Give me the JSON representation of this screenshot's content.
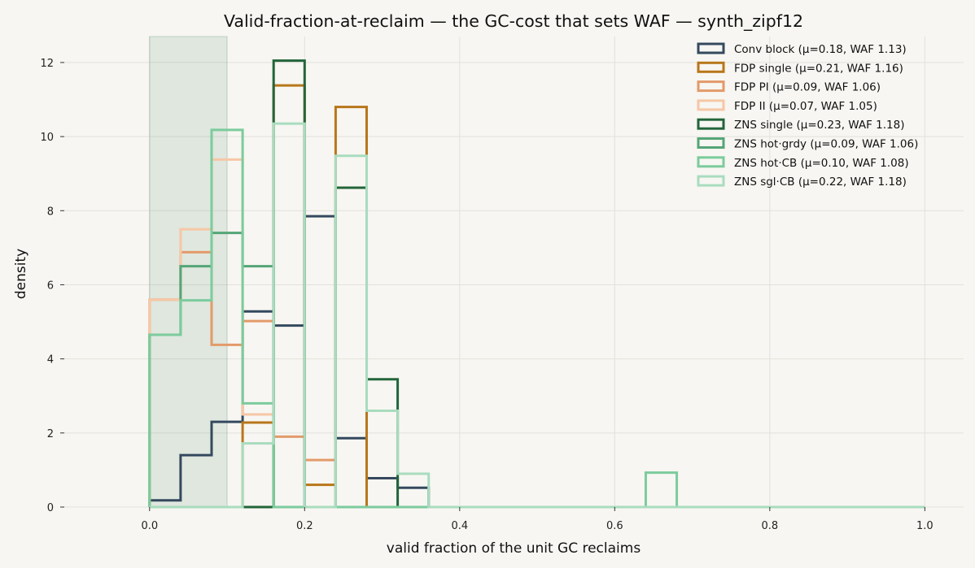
{
  "chart_data": {
    "type": "histogram",
    "title": "Valid-fraction-at-reclaim — the GC-cost that sets WAF — synth_zipf12",
    "xlabel": "valid fraction of the unit GC reclaims",
    "ylabel": "density",
    "xlim": [
      -0.11,
      1.05
    ],
    "ylim": [
      0,
      12.7
    ],
    "xticks": [
      "0.0",
      "0.2",
      "0.4",
      "0.6",
      "0.8",
      "1.0"
    ],
    "yticks": [
      "0",
      "2",
      "4",
      "6",
      "8",
      "10",
      "12"
    ],
    "grid": true,
    "legend_position": "upper right",
    "shaded_region": {
      "x": [
        0.0,
        0.1
      ],
      "color": "#2e7d4f",
      "opacity": 0.12
    },
    "bin_edges": [
      0.0,
      0.04,
      0.08,
      0.12,
      0.16,
      0.2,
      0.24,
      0.28,
      0.32,
      0.36,
      0.4,
      0.44,
      0.48,
      0.52,
      0.56,
      0.6,
      0.64,
      0.68,
      0.72,
      0.76,
      0.8,
      0.84,
      0.88,
      0.92,
      0.96,
      1.0
    ],
    "series": [
      {
        "name": "Conv block  (μ=0.18, WAF 1.13)",
        "color": "#34495e",
        "values": [
          0.18,
          1.4,
          2.3,
          5.28,
          4.9,
          7.85,
          1.86,
          0.78,
          0.52,
          0,
          0,
          0,
          0,
          0,
          0,
          0,
          0,
          0,
          0,
          0,
          0,
          0,
          0,
          0,
          0
        ]
      },
      {
        "name": "FDP single  (μ=0.21, WAF 1.16)",
        "color": "#b8761a",
        "values": [
          0,
          0,
          0,
          2.28,
          11.38,
          0.6,
          10.8,
          0,
          0,
          0,
          0,
          0,
          0,
          0,
          0,
          0,
          0,
          0,
          0,
          0,
          0,
          0,
          0,
          0,
          0
        ]
      },
      {
        "name": "FDP PI  (μ=0.09, WAF 1.06)",
        "color": "#e39a6a",
        "values": [
          5.6,
          6.88,
          4.38,
          5.02,
          1.9,
          1.27,
          0,
          0,
          0,
          0,
          0,
          0,
          0,
          0,
          0,
          0,
          0,
          0,
          0,
          0,
          0,
          0,
          0,
          0,
          0
        ]
      },
      {
        "name": "FDP II  (μ=0.07, WAF 1.05)",
        "color": "#f6c7a6",
        "values": [
          5.6,
          7.5,
          9.38,
          2.5,
          0,
          0,
          0,
          0,
          0,
          0,
          0,
          0,
          0,
          0,
          0,
          0,
          0,
          0,
          0,
          0,
          0,
          0,
          0,
          0,
          0
        ]
      },
      {
        "name": "ZNS single  (μ=0.23, WAF 1.18)",
        "color": "#23653a",
        "values": [
          0,
          0,
          0,
          0,
          12.05,
          0,
          8.62,
          3.45,
          0,
          0,
          0,
          0,
          0,
          0,
          0,
          0,
          0,
          0,
          0,
          0,
          0,
          0,
          0,
          0,
          0
        ]
      },
      {
        "name": "ZNS hot·grdy  (μ=0.09, WAF 1.06)",
        "color": "#55a577",
        "values": [
          4.65,
          6.5,
          7.4,
          6.5,
          0,
          0,
          0,
          0,
          0,
          0,
          0,
          0,
          0,
          0,
          0,
          0,
          0,
          0,
          0,
          0,
          0,
          0,
          0,
          0,
          0
        ]
      },
      {
        "name": "ZNS hot·CB  (μ=0.10, WAF 1.08)",
        "color": "#7ccb9c",
        "values": [
          4.65,
          5.58,
          10.18,
          2.8,
          0,
          0,
          0,
          0,
          0,
          0,
          0,
          0,
          0,
          0,
          0,
          0,
          0.93,
          0,
          0,
          0,
          0,
          0,
          0,
          0,
          0
        ]
      },
      {
        "name": "ZNS sgl·CB  (μ=0.22, WAF 1.18)",
        "color": "#a9dcbf",
        "values": [
          0,
          0,
          0,
          1.72,
          10.35,
          0,
          9.48,
          2.6,
          0.9,
          0,
          0,
          0,
          0,
          0,
          0,
          0,
          0,
          0,
          0,
          0,
          0,
          0,
          0,
          0,
          0
        ]
      }
    ]
  }
}
